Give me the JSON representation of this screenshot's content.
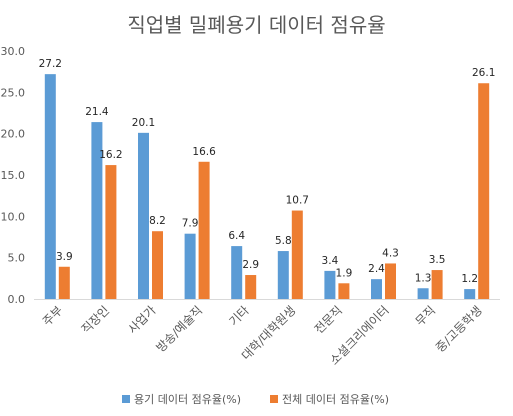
{
  "chart_data": {
    "type": "bar",
    "title": "직업별 밀폐용기 데이터 점유율",
    "xlabel": "",
    "ylabel": "",
    "categories": [
      "주부",
      "직장인",
      "사업가",
      "방송/예술직",
      "기타",
      "대학/대학원생",
      "전문직",
      "소셜크리에이터",
      "무직",
      "중/고등학생"
    ],
    "series": [
      {
        "name": "용기 데이터 점유율(%)",
        "color": "#5B9BD5",
        "values": [
          27.2,
          21.4,
          20.1,
          7.9,
          6.4,
          5.8,
          3.4,
          2.4,
          1.3,
          1.2
        ]
      },
      {
        "name": "전체 데이터 점유율(%)",
        "color": "#ED7D31",
        "values": [
          3.9,
          16.2,
          8.2,
          16.6,
          2.9,
          10.7,
          1.9,
          4.3,
          3.5,
          26.1
        ]
      }
    ],
    "ylim": [
      0,
      30
    ],
    "yticks": [
      "0.0",
      "5.0",
      "10.0",
      "15.0",
      "20.0",
      "25.0",
      "30.0"
    ],
    "grid": false,
    "legend": "bottom"
  }
}
